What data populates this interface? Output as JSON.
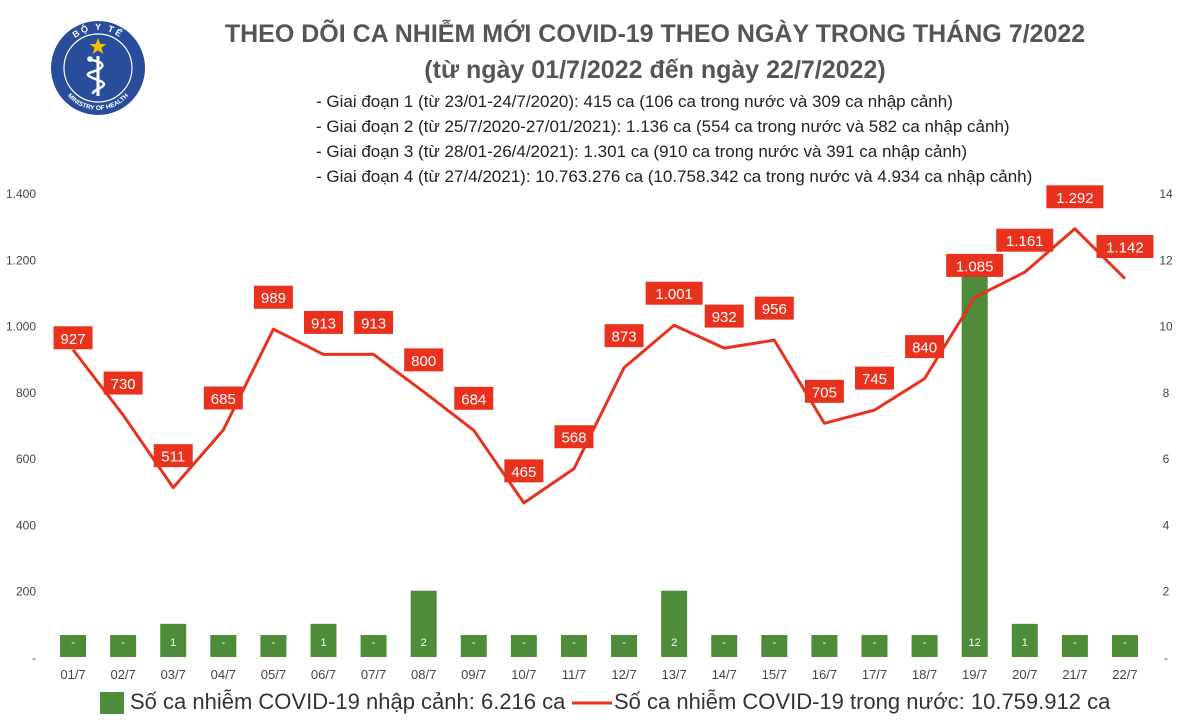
{
  "header": {
    "title_line1": "THEO DÕI CA NHIỄM MỚI COVID-19 THEO NGÀY TRONG THÁNG 7/2022",
    "title_line2": "(từ ngày 01/7/2022 đến ngày 22/7/2022)",
    "phases": [
      "- Giai đoạn 1 (từ 23/01-24/7/2020): 415 ca (106 ca trong nước và 309 ca nhập cảnh)",
      "- Giai đoạn 2 (từ 25/7/2020-27/01/2021): 1.136 ca (554 ca trong nước và 582 ca nhập cảnh)",
      "- Giai đoạn 3 (từ 28/01-26/4/2021): 1.301 ca (910 ca trong nước và 391 ca nhập cảnh)",
      "- Giai đoạn 4 (từ 27/4/2021): 10.763.276 ca (10.758.342 ca trong nước và 4.934 ca nhập cảnh)"
    ]
  },
  "logo": {
    "top_text": "BỘ Y TẾ",
    "bottom_text": "MINISTRY OF HEALTH"
  },
  "colors": {
    "bar": "#4e8c3a",
    "line": "#e8321e",
    "label_bg": "#e8321e",
    "logo_blue": "#2a4d9b"
  },
  "chart_data": {
    "type": "bar+line",
    "categories": [
      "01/7",
      "02/7",
      "03/7",
      "04/7",
      "05/7",
      "06/7",
      "07/7",
      "08/7",
      "09/7",
      "10/7",
      "11/7",
      "12/7",
      "13/7",
      "14/7",
      "15/7",
      "16/7",
      "17/7",
      "18/7",
      "19/7",
      "20/7",
      "21/7",
      "22/7"
    ],
    "left_axis": {
      "ticks": [
        "-",
        "200",
        "400",
        "600",
        "800",
        "1.000",
        "1.200",
        "1.400"
      ],
      "min": 0,
      "max": 1400,
      "step": 200
    },
    "right_axis": {
      "ticks": [
        "-",
        "2",
        "4",
        "6",
        "8",
        "10",
        "12",
        "14"
      ],
      "min": 0,
      "max": 14,
      "step": 2
    },
    "series": [
      {
        "name": "Số ca nhiễm COVID-19 nhập cảnh: 6.216 ca",
        "type": "bar",
        "axis": "right",
        "values": [
          0,
          0,
          1,
          0,
          0,
          1,
          0,
          2,
          0,
          0,
          0,
          0,
          2,
          0,
          0,
          0,
          0,
          0,
          12,
          1,
          0,
          0
        ],
        "labels": [
          "-",
          "-",
          "1",
          "-",
          "-",
          "1",
          "-",
          "2",
          "-",
          "-",
          "-",
          "-",
          "2",
          "-",
          "-",
          "-",
          "-",
          "-",
          "12",
          "1",
          "-",
          "-"
        ]
      },
      {
        "name": "Số ca nhiễm COVID-19 trong nước: 10.759.912 ca",
        "type": "line",
        "axis": "left",
        "values": [
          927,
          730,
          511,
          685,
          989,
          913,
          913,
          800,
          684,
          465,
          568,
          873,
          1001,
          932,
          956,
          705,
          745,
          840,
          1085,
          1161,
          1292,
          1142
        ],
        "labels": [
          "927",
          "730",
          "511",
          "685",
          "989",
          "913",
          "913",
          "800",
          "684",
          "465",
          "568",
          "873",
          "1.001",
          "932",
          "956",
          "705",
          "745",
          "840",
          "1.085",
          "1.161",
          "1.292",
          "1.142"
        ]
      }
    ],
    "grid": false,
    "legend_position": "bottom"
  }
}
